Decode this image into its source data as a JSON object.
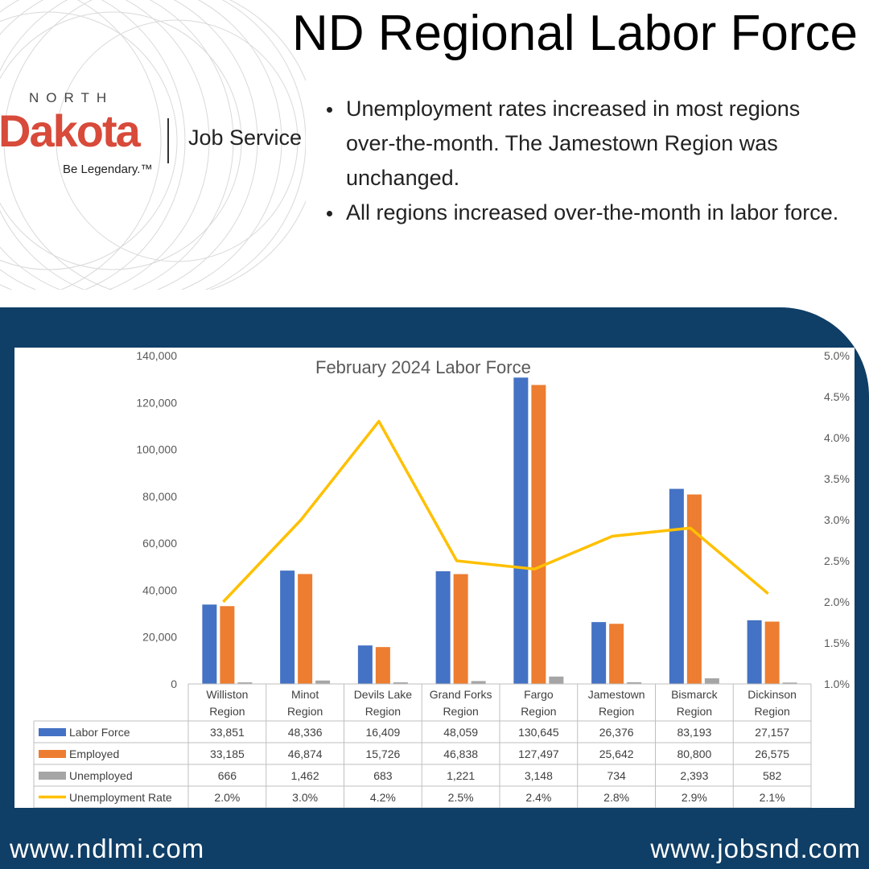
{
  "header": {
    "title": "ND Regional Labor Force",
    "logo": {
      "north": "NORTH",
      "dakota": "Dakota",
      "job_service": "Job Service",
      "tagline": "Be Legendary.™"
    },
    "bullets": [
      "Unemployment rates increased in most regions over-the-month. The Jamestown Region was unchanged.",
      "All regions increased over-the-month in labor force."
    ]
  },
  "footer": {
    "left": "www.ndlmi.com",
    "right": "www.jobsnd.com"
  },
  "colors": {
    "panel": "#0f3e66",
    "brand_red": "#d84a3a",
    "labor_force": "#4472c4",
    "employed": "#ed7d31",
    "unemployed": "#a5a5a5",
    "unemployment_rate": "#ffc000"
  },
  "chart_data": {
    "type": "bar",
    "title": "February 2024 Labor Force",
    "categories": [
      [
        "Williston",
        "Region"
      ],
      [
        "Minot",
        "Region"
      ],
      [
        "Devils Lake",
        "Region"
      ],
      [
        "Grand Forks",
        "Region"
      ],
      [
        "Fargo",
        "Region"
      ],
      [
        "Jamestown",
        "Region"
      ],
      [
        "Bismarck",
        "Region"
      ],
      [
        "Dickinson",
        "Region"
      ]
    ],
    "series": [
      {
        "name": "Labor Force",
        "type": "bar",
        "axis": "left",
        "values": [
          33851,
          48336,
          16409,
          48059,
          130645,
          26376,
          83193,
          27157
        ],
        "labels": [
          "33,851",
          "48,336",
          "16,409",
          "48,059",
          "130,645",
          "26,376",
          "83,193",
          "27,157"
        ]
      },
      {
        "name": "Employed",
        "type": "bar",
        "axis": "left",
        "values": [
          33185,
          46874,
          15726,
          46838,
          127497,
          25642,
          80800,
          26575
        ],
        "labels": [
          "33,185",
          "46,874",
          "15,726",
          "46,838",
          "127,497",
          "25,642",
          "80,800",
          "26,575"
        ]
      },
      {
        "name": "Unemployed",
        "type": "bar",
        "axis": "left",
        "values": [
          666,
          1462,
          683,
          1221,
          3148,
          734,
          2393,
          582
        ],
        "labels": [
          "666",
          "1,462",
          "683",
          "1,221",
          "3,148",
          "734",
          "2,393",
          "582"
        ]
      },
      {
        "name": "Unemployment Rate",
        "type": "line",
        "axis": "right",
        "values": [
          2.0,
          3.0,
          4.2,
          2.5,
          2.4,
          2.8,
          2.9,
          2.1
        ],
        "labels": [
          "2.0%",
          "3.0%",
          "4.2%",
          "2.5%",
          "2.4%",
          "2.8%",
          "2.9%",
          "2.1%"
        ]
      }
    ],
    "y_left": {
      "min": 0,
      "max": 140000,
      "ticks": [
        "0",
        "20,000",
        "40,000",
        "60,000",
        "80,000",
        "100,000",
        "120,000",
        "140,000"
      ]
    },
    "y_right": {
      "min": 1.0,
      "max": 5.0,
      "ticks": [
        "1.0%",
        "1.5%",
        "2.0%",
        "2.5%",
        "3.0%",
        "3.5%",
        "4.0%",
        "4.5%",
        "5.0%"
      ]
    },
    "grid": false,
    "legend": "data table below chart"
  }
}
